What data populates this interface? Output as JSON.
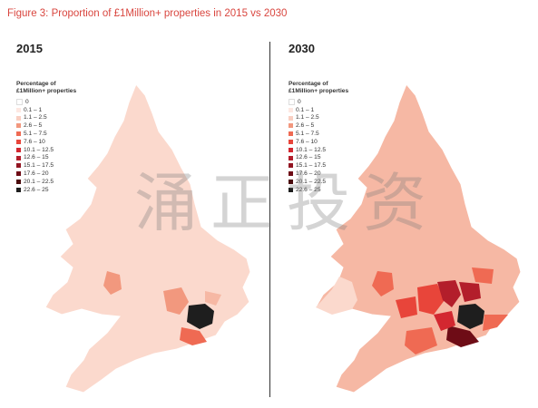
{
  "figure_title": "Figure 3: Proportion of £1Million+ properties in 2015 vs 2030",
  "left_panel": {
    "year": "2015"
  },
  "right_panel": {
    "year": "2030"
  },
  "legend": {
    "title_line1": "Percentage of",
    "title_line2": "£1Million+ properties",
    "items": [
      {
        "label": "0",
        "color": "#ffffff"
      },
      {
        "label": "0.1 – 1",
        "color": "#fde8e2"
      },
      {
        "label": "1.1 – 2.5",
        "color": "#f9cfc2"
      },
      {
        "label": "2.6 – 5",
        "color": "#f2987e"
      },
      {
        "label": "5.1 – 7.5",
        "color": "#ef6a53"
      },
      {
        "label": "7.6 – 10",
        "color": "#e8453a"
      },
      {
        "label": "10.1 – 12.5",
        "color": "#d32730"
      },
      {
        "label": "12.6 – 15",
        "color": "#b31e2b"
      },
      {
        "label": "15.1 – 17.5",
        "color": "#921421"
      },
      {
        "label": "17.6 – 20",
        "color": "#6e0c16"
      },
      {
        "label": "20.1 – 22.5",
        "color": "#4a0a0c"
      },
      {
        "label": "22.6 – 25",
        "color": "#1e1e1e"
      }
    ]
  },
  "watermark_text": "涌正投资"
}
